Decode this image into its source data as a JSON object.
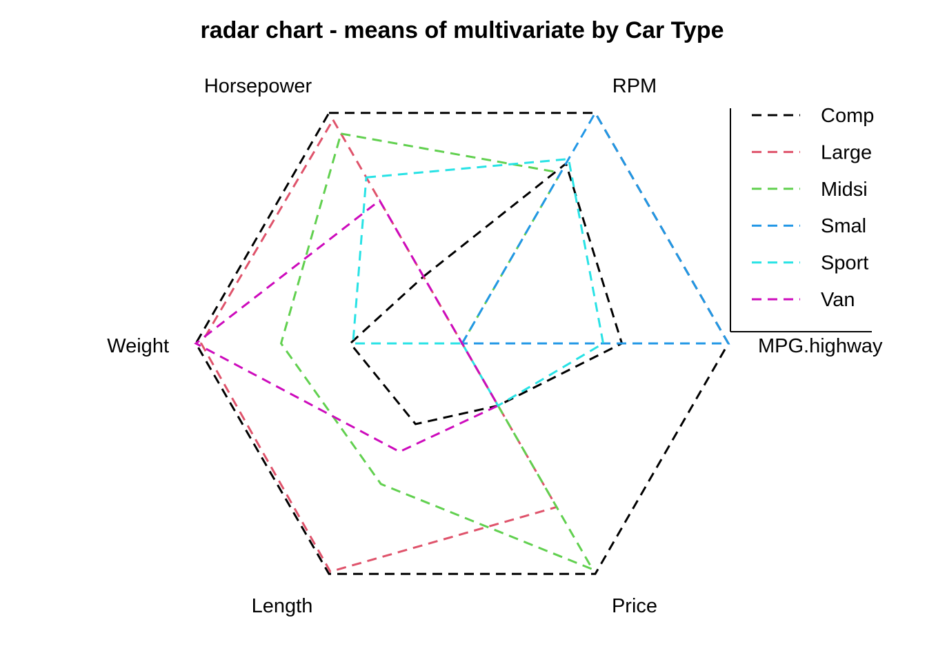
{
  "chart_data": {
    "type": "radar",
    "title": "radar chart - means of multivariate by Car Type",
    "axes": [
      "Horsepower",
      "RPM",
      "MPG.highway",
      "Price",
      "Length",
      "Weight"
    ],
    "scale": [
      0,
      1
    ],
    "grid": "outer hexagon only",
    "legend_position": "right",
    "series": [
      {
        "name": "Compact",
        "color": "#000000",
        "values": [
          0.29,
          0.78,
          0.6,
          0.27,
          0.35,
          0.42
        ]
      },
      {
        "name": "Large",
        "color": "#DF536B",
        "values": [
          0.97,
          0.0,
          0.0,
          0.71,
          0.99,
          0.98
        ]
      },
      {
        "name": "Midsize",
        "color": "#61D04F",
        "values": [
          0.91,
          0.74,
          0.0,
          0.98,
          0.61,
          0.68
        ]
      },
      {
        "name": "Small",
        "color": "#2297E6",
        "values": [
          0.0,
          1.0,
          1.0,
          0.0,
          0.0,
          0.0
        ]
      },
      {
        "name": "Sporty",
        "color": "#28E2E5",
        "values": [
          0.72,
          0.8,
          0.53,
          0.27,
          0.0,
          0.41
        ]
      },
      {
        "name": "Van",
        "color": "#CD0BBC",
        "values": [
          0.62,
          0.0,
          0.0,
          0.27,
          0.47,
          1.0
        ]
      }
    ],
    "legend_entries": [
      "Comp",
      "Large",
      "Midsi",
      "Smal",
      "Sport",
      "Van"
    ]
  }
}
